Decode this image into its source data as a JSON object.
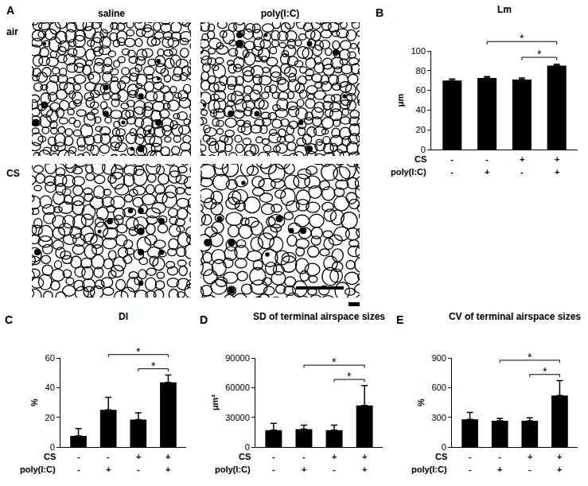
{
  "panel_a": {
    "letter": "A",
    "columns": [
      "saline",
      "poly(I:C)"
    ],
    "rows": [
      "air",
      "CS"
    ]
  },
  "chart_data": [
    {
      "letter": "B",
      "type": "bar",
      "title": "Lm",
      "y_label": "μm",
      "categories": [
        null,
        null,
        null,
        null
      ],
      "x_groups": [
        {
          "name": "CS",
          "labels": [
            "-",
            "-",
            "+",
            "+"
          ]
        },
        {
          "name": "poly(I:C)",
          "labels": [
            "-",
            "+",
            "-",
            "+"
          ]
        }
      ],
      "values": [
        70,
        72.5,
        71,
        85
      ],
      "errors": [
        1.5,
        1.5,
        1.5,
        1.5
      ],
      "color": "#000000",
      "ylim": [
        0,
        100
      ],
      "yticks": [
        0,
        20,
        40,
        60,
        80,
        100
      ],
      "grid": false,
      "tick_labels": "y",
      "significance": [
        {
          "from": 1,
          "to": 3,
          "label": "*"
        },
        {
          "from": 2,
          "to": 3,
          "label": "*"
        }
      ]
    },
    {
      "letter": "C",
      "type": "bar",
      "title": "DI",
      "y_label": "%",
      "categories": [
        null,
        null,
        null,
        null
      ],
      "x_groups": [
        {
          "name": "CS",
          "labels": [
            "-",
            "-",
            "+",
            "+"
          ]
        },
        {
          "name": "poly(I:C)",
          "labels": [
            "-",
            "+",
            "-",
            "+"
          ]
        }
      ],
      "values": [
        7.5,
        25,
        18.5,
        43.5
      ],
      "errors": [
        5,
        8.5,
        4.5,
        5
      ],
      "color": "#000000",
      "ylim": [
        0,
        60
      ],
      "yticks": [
        0,
        20,
        40,
        60
      ],
      "grid": false,
      "tick_labels": "y",
      "significance": [
        {
          "from": 1,
          "to": 3,
          "label": "*"
        },
        {
          "from": 2,
          "to": 3,
          "label": "*"
        }
      ]
    },
    {
      "letter": "D",
      "type": "bar",
      "title": "SD of terminal airspace sizes",
      "y_label": "μm²",
      "categories": [
        null,
        null,
        null,
        null
      ],
      "x_groups": [
        {
          "name": "CS",
          "labels": [
            "-",
            "-",
            "+",
            "+"
          ]
        },
        {
          "name": "poly(I:C)",
          "labels": [
            "-",
            "+",
            "-",
            "+"
          ]
        }
      ],
      "values": [
        17000,
        18000,
        17000,
        42000
      ],
      "errors": [
        7000,
        4000,
        5000,
        20000
      ],
      "color": "#000000",
      "ylim": [
        0,
        90000
      ],
      "yticks": [
        0,
        30000,
        60000,
        90000
      ],
      "grid": false,
      "tick_labels": "y",
      "significance": [
        {
          "from": 1,
          "to": 3,
          "label": "*"
        },
        {
          "from": 2,
          "to": 3,
          "label": "*"
        }
      ]
    },
    {
      "letter": "E",
      "type": "bar",
      "title": "CV of terminal airspace sizes",
      "y_label": "%",
      "categories": [
        null,
        null,
        null,
        null
      ],
      "x_groups": [
        {
          "name": "CS",
          "labels": [
            "-",
            "-",
            "+",
            "+"
          ]
        },
        {
          "name": "poly(I:C)",
          "labels": [
            "-",
            "+",
            "-",
            "+"
          ]
        }
      ],
      "values": [
        280,
        265,
        265,
        520
      ],
      "errors": [
        70,
        25,
        30,
        150
      ],
      "color": "#000000",
      "ylim": [
        0,
        900
      ],
      "yticks": [
        0,
        300,
        600,
        900
      ],
      "grid": false,
      "tick_labels": "y",
      "significance": [
        {
          "from": 1,
          "to": 3,
          "label": "*"
        },
        {
          "from": 2,
          "to": 3,
          "label": "*"
        }
      ]
    }
  ]
}
